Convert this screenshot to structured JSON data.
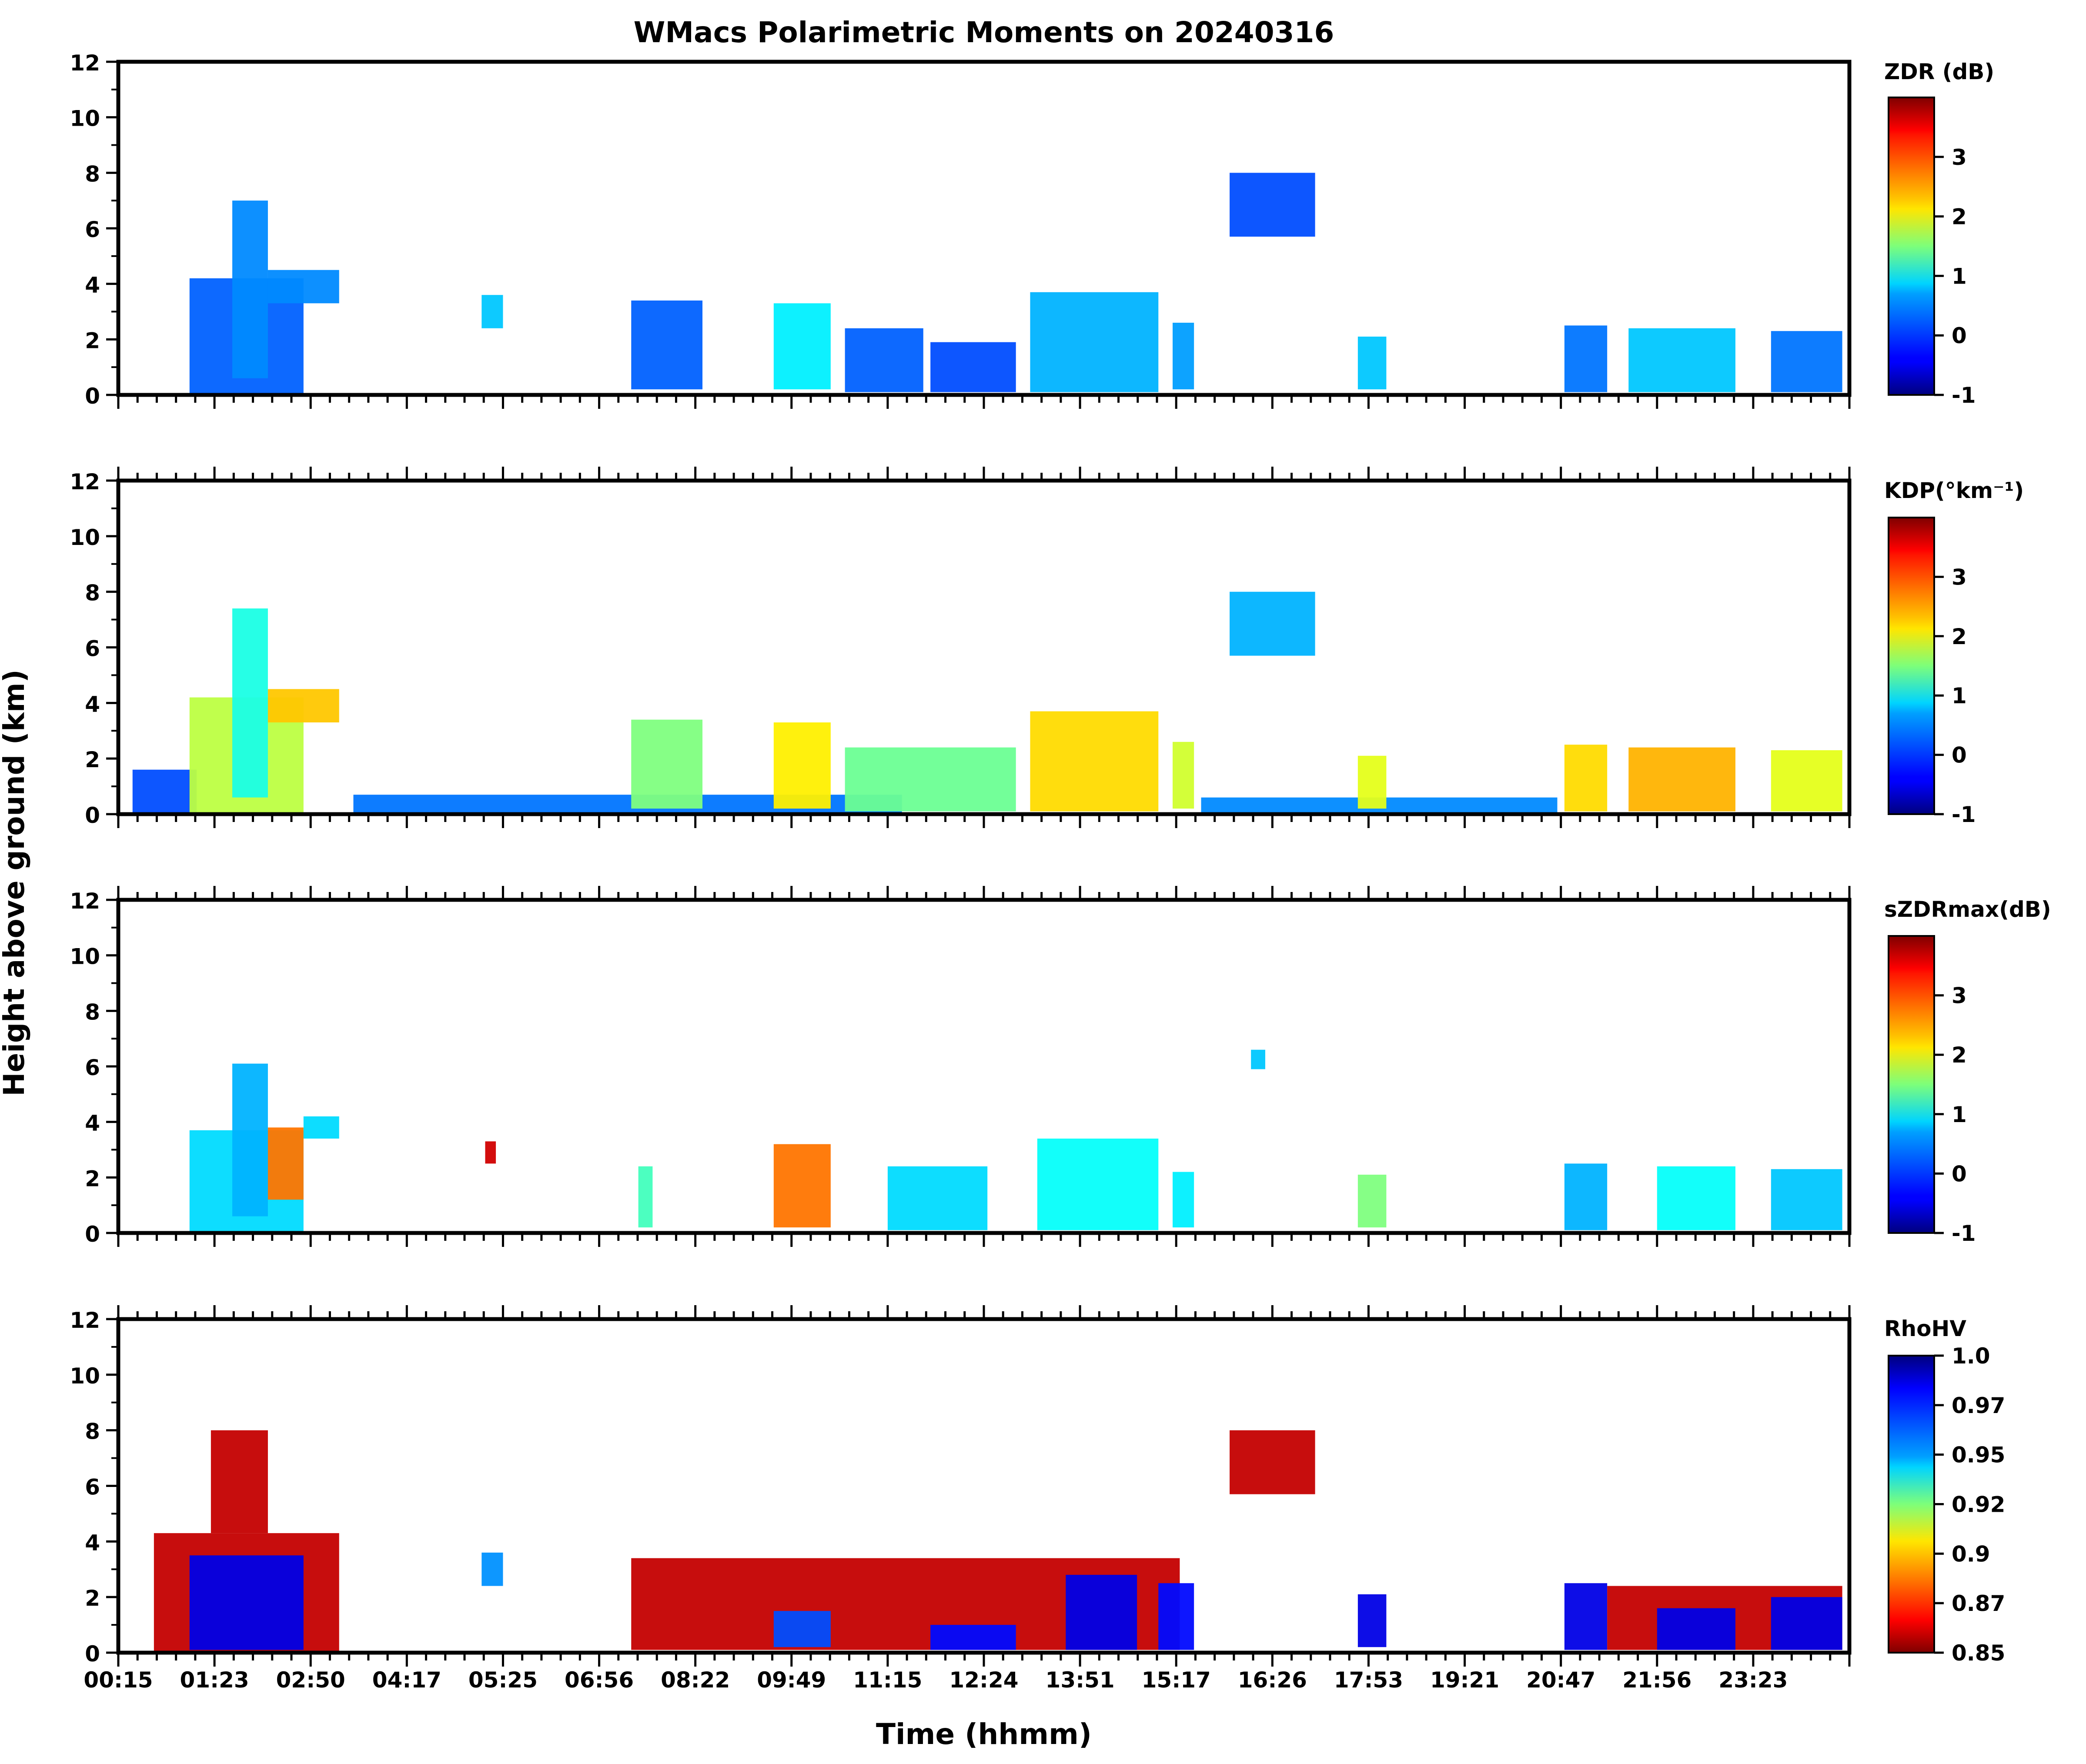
{
  "chart_data": {
    "type": "heatmap",
    "title": "WMacs Polarimetric Moments on 20240316",
    "xlabel": "Time (hhmm)",
    "ylabel": "Height above ground (km)",
    "x_ticklabels": [
      "00:15",
      "01:23",
      "02:50",
      "04:17",
      "05:25",
      "06:56",
      "08:22",
      "09:49",
      "11:15",
      "12:24",
      "13:51",
      "15:17",
      "16:26",
      "17:53",
      "19:21",
      "20:47",
      "21:56",
      "23:23"
    ],
    "y_ticks": [
      0,
      2,
      4,
      6,
      8,
      10,
      12
    ],
    "ylim": [
      0,
      12
    ],
    "panels": [
      {
        "variable": "ZDR",
        "colorbar_label": "ZDR (dB)",
        "colormap": "jet",
        "cbar_ticks": [
          "-1",
          "0",
          "1",
          "2",
          "3"
        ],
        "cbar_range": [
          -1,
          4
        ],
        "echoes": [
          {
            "t0": 1.0,
            "t1": 2.6,
            "h0": 0,
            "h1": 4.2,
            "v": 0.1
          },
          {
            "t0": 1.6,
            "t1": 2.1,
            "h0": 0.6,
            "h1": 7.0,
            "v": 0.3
          },
          {
            "t0": 2.1,
            "t1": 3.1,
            "h0": 3.3,
            "h1": 4.5,
            "v": 0.3
          },
          {
            "t0": 5.1,
            "t1": 5.4,
            "h0": 2.4,
            "h1": 3.6,
            "v": 0.6
          },
          {
            "t0": 7.2,
            "t1": 8.2,
            "h0": 0.2,
            "h1": 3.4,
            "v": 0.1
          },
          {
            "t0": 9.2,
            "t1": 10.0,
            "h0": 0.2,
            "h1": 3.3,
            "v": 0.8
          },
          {
            "t0": 10.2,
            "t1": 11.3,
            "h0": 0.1,
            "h1": 2.4,
            "v": 0.1
          },
          {
            "t0": 11.4,
            "t1": 12.6,
            "h0": 0.1,
            "h1": 1.9,
            "v": 0.0
          },
          {
            "t0": 12.8,
            "t1": 14.6,
            "h0": 0.1,
            "h1": 3.7,
            "v": 0.5
          },
          {
            "t0": 14.8,
            "t1": 15.1,
            "h0": 0.2,
            "h1": 2.6,
            "v": 0.4
          },
          {
            "t0": 15.6,
            "t1": 16.8,
            "h0": 5.7,
            "h1": 8.0,
            "v": 0.0
          },
          {
            "t0": 17.4,
            "t1": 17.8,
            "h0": 0.2,
            "h1": 2.1,
            "v": 0.6
          },
          {
            "t0": 20.3,
            "t1": 20.9,
            "h0": 0.1,
            "h1": 2.5,
            "v": 0.2
          },
          {
            "t0": 21.2,
            "t1": 22.7,
            "h0": 0.1,
            "h1": 2.4,
            "v": 0.6
          },
          {
            "t0": 23.2,
            "t1": 24.2,
            "h0": 0.1,
            "h1": 2.3,
            "v": 0.2
          }
        ]
      },
      {
        "variable": "KDP",
        "colorbar_label": "KDP(°km⁻¹)",
        "colormap": "jet",
        "cbar_ticks": [
          "-1",
          "0",
          "1",
          "2",
          "3"
        ],
        "cbar_range": [
          -1,
          4
        ],
        "echoes": [
          {
            "t0": 0.2,
            "t1": 1.1,
            "h0": 0,
            "h1": 1.6,
            "v": 0.0
          },
          {
            "t0": 1.0,
            "t1": 2.6,
            "h0": 0,
            "h1": 4.2,
            "v": 1.8
          },
          {
            "t0": 1.6,
            "t1": 2.1,
            "h0": 0.6,
            "h1": 7.4,
            "v": 1.0
          },
          {
            "t0": 2.1,
            "t1": 3.1,
            "h0": 3.3,
            "h1": 4.5,
            "v": 2.4
          },
          {
            "t0": 3.3,
            "t1": 11.0,
            "h0": 0.05,
            "h1": 0.7,
            "v": 0.2
          },
          {
            "t0": 7.2,
            "t1": 8.2,
            "h0": 0.2,
            "h1": 3.4,
            "v": 1.5
          },
          {
            "t0": 9.2,
            "t1": 10.0,
            "h0": 0.2,
            "h1": 3.3,
            "v": 2.2
          },
          {
            "t0": 10.2,
            "t1": 12.6,
            "h0": 0.1,
            "h1": 2.4,
            "v": 1.4
          },
          {
            "t0": 12.8,
            "t1": 14.6,
            "h0": 0.1,
            "h1": 3.7,
            "v": 2.3
          },
          {
            "t0": 14.8,
            "t1": 15.1,
            "h0": 0.2,
            "h1": 2.6,
            "v": 1.9
          },
          {
            "t0": 15.6,
            "t1": 16.8,
            "h0": 5.7,
            "h1": 8.0,
            "v": 0.5
          },
          {
            "t0": 15.2,
            "t1": 20.2,
            "h0": 0.05,
            "h1": 0.6,
            "v": 0.3
          },
          {
            "t0": 17.4,
            "t1": 17.8,
            "h0": 0.2,
            "h1": 2.1,
            "v": 2.0
          },
          {
            "t0": 20.3,
            "t1": 20.9,
            "h0": 0.1,
            "h1": 2.5,
            "v": 2.3
          },
          {
            "t0": 21.2,
            "t1": 22.7,
            "h0": 0.1,
            "h1": 2.4,
            "v": 2.5
          },
          {
            "t0": 23.2,
            "t1": 24.2,
            "h0": 0.1,
            "h1": 2.3,
            "v": 2.0
          }
        ]
      },
      {
        "variable": "sZDRmax",
        "colorbar_label": "sZDRmax(dB)",
        "colormap": "jet",
        "cbar_ticks": [
          "-1",
          "0",
          "1",
          "2",
          "3"
        ],
        "cbar_range": [
          -1,
          4
        ],
        "echoes": [
          {
            "t0": 1.0,
            "t1": 2.6,
            "h0": 0,
            "h1": 3.7,
            "v": 0.7
          },
          {
            "t0": 1.6,
            "t1": 2.1,
            "h0": 0.6,
            "h1": 6.1,
            "v": 0.5
          },
          {
            "t0": 2.1,
            "t1": 2.6,
            "h0": 1.2,
            "h1": 3.8,
            "v": 2.8
          },
          {
            "t0": 2.6,
            "t1": 3.1,
            "h0": 3.4,
            "h1": 4.2,
            "v": 0.7
          },
          {
            "t0": 5.15,
            "t1": 5.3,
            "h0": 2.5,
            "h1": 3.3,
            "v": 3.6
          },
          {
            "t0": 7.3,
            "t1": 7.5,
            "h0": 0.2,
            "h1": 2.4,
            "v": 1.2
          },
          {
            "t0": 9.2,
            "t1": 10.0,
            "h0": 0.2,
            "h1": 3.2,
            "v": 2.8
          },
          {
            "t0": 10.8,
            "t1": 12.2,
            "h0": 0.1,
            "h1": 2.4,
            "v": 0.7
          },
          {
            "t0": 12.9,
            "t1": 14.6,
            "h0": 0.1,
            "h1": 3.4,
            "v": 0.9
          },
          {
            "t0": 14.8,
            "t1": 15.1,
            "h0": 0.2,
            "h1": 2.2,
            "v": 0.8
          },
          {
            "t0": 15.9,
            "t1": 16.1,
            "h0": 5.9,
            "h1": 6.6,
            "v": 0.6
          },
          {
            "t0": 17.4,
            "t1": 17.8,
            "h0": 0.2,
            "h1": 2.1,
            "v": 1.5
          },
          {
            "t0": 20.3,
            "t1": 20.9,
            "h0": 0.1,
            "h1": 2.5,
            "v": 0.5
          },
          {
            "t0": 21.6,
            "t1": 22.7,
            "h0": 0.1,
            "h1": 2.4,
            "v": 0.9
          },
          {
            "t0": 23.2,
            "t1": 24.2,
            "h0": 0.1,
            "h1": 2.3,
            "v": 0.6
          }
        ]
      },
      {
        "variable": "RhoHV",
        "colorbar_label": "RhoHV",
        "colormap": "jet_r",
        "cbar_ticks": [
          "0.85",
          "0.87",
          "0.9",
          "0.92",
          "0.95",
          "0.97",
          "1.0"
        ],
        "cbar_range": [
          0.85,
          1.0
        ],
        "echoes": [
          {
            "t0": 0.5,
            "t1": 3.1,
            "h0": 0,
            "h1": 4.3,
            "v": 0.86
          },
          {
            "t0": 1.3,
            "t1": 2.1,
            "h0": 4.3,
            "h1": 8.0,
            "v": 0.86
          },
          {
            "t0": 1.0,
            "t1": 2.6,
            "h0": 0.1,
            "h1": 3.5,
            "v": 0.985
          },
          {
            "t0": 5.1,
            "t1": 5.4,
            "h0": 2.4,
            "h1": 3.6,
            "v": 0.96
          },
          {
            "t0": 7.2,
            "t1": 14.9,
            "h0": 0.1,
            "h1": 3.4,
            "v": 0.86
          },
          {
            "t0": 9.2,
            "t1": 10.0,
            "h0": 0.2,
            "h1": 1.5,
            "v": 0.97
          },
          {
            "t0": 11.4,
            "t1": 12.6,
            "h0": 0.1,
            "h1": 1.0,
            "v": 0.98
          },
          {
            "t0": 13.3,
            "t1": 14.3,
            "h0": 0.1,
            "h1": 2.8,
            "v": 0.985
          },
          {
            "t0": 14.6,
            "t1": 15.1,
            "h0": 0.1,
            "h1": 2.5,
            "v": 0.98
          },
          {
            "t0": 15.6,
            "t1": 16.8,
            "h0": 5.7,
            "h1": 8.0,
            "v": 0.86
          },
          {
            "t0": 17.4,
            "t1": 17.8,
            "h0": 0.2,
            "h1": 2.1,
            "v": 0.985
          },
          {
            "t0": 20.3,
            "t1": 20.9,
            "h0": 0.1,
            "h1": 2.5,
            "v": 0.985
          },
          {
            "t0": 20.9,
            "t1": 24.2,
            "h0": 0.1,
            "h1": 2.4,
            "v": 0.86
          },
          {
            "t0": 21.6,
            "t1": 22.7,
            "h0": 0.1,
            "h1": 1.6,
            "v": 0.985
          },
          {
            "t0": 23.2,
            "t1": 24.2,
            "h0": 0.1,
            "h1": 2.0,
            "v": 0.985
          }
        ]
      }
    ]
  }
}
